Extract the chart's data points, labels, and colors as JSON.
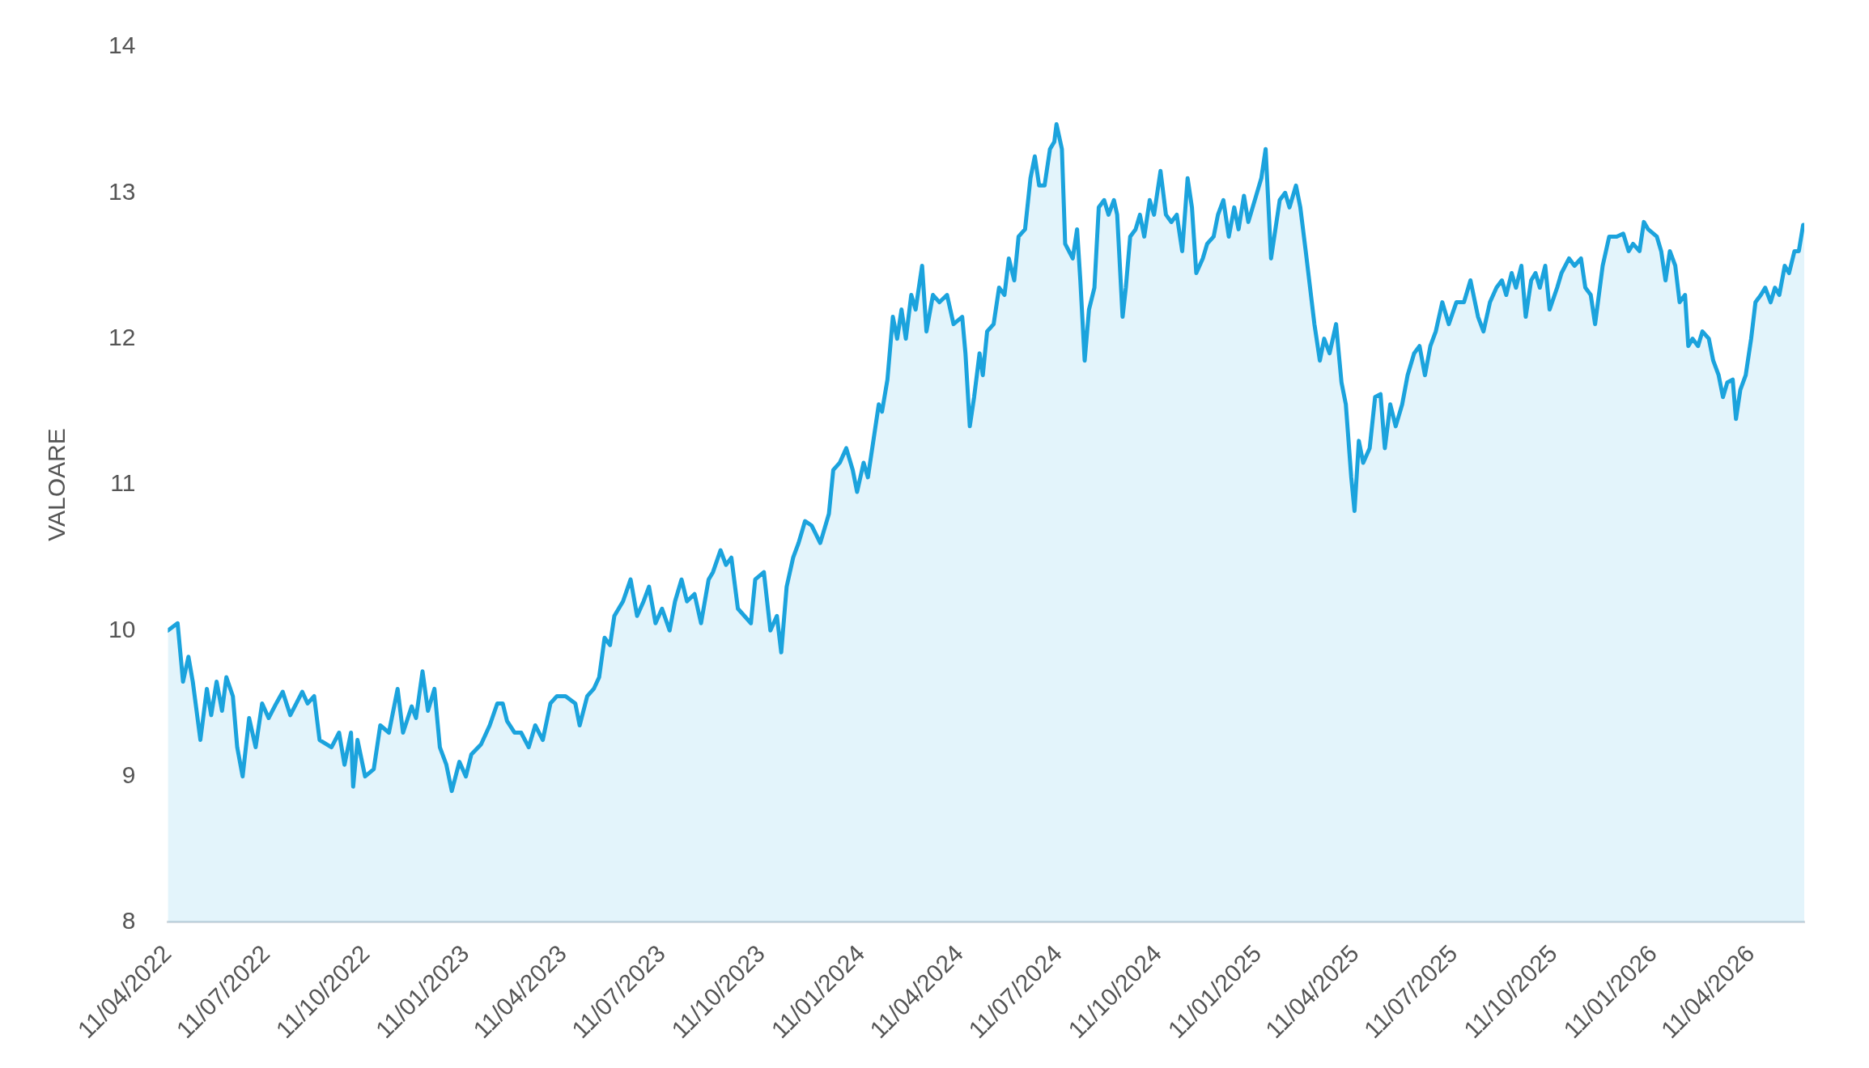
{
  "chart_data": {
    "type": "area",
    "ylabel": "VALOARE",
    "xlim": [
      "2022-04-11",
      "2026-05-30"
    ],
    "xticks": [
      {
        "value": "2022-04-11",
        "label": "11/04/2022"
      },
      {
        "value": "2022-07-11",
        "label": "11/07/2022"
      },
      {
        "value": "2022-10-11",
        "label": "11/10/2022"
      },
      {
        "value": "2023-01-11",
        "label": "11/01/2023"
      },
      {
        "value": "2023-04-11",
        "label": "11/04/2023"
      },
      {
        "value": "2023-07-11",
        "label": "11/07/2023"
      },
      {
        "value": "2023-10-11",
        "label": "11/10/2023"
      },
      {
        "value": "2024-01-11",
        "label": "11/01/2024"
      },
      {
        "value": "2024-04-11",
        "label": "11/04/2024"
      },
      {
        "value": "2024-07-11",
        "label": "11/07/2024"
      },
      {
        "value": "2024-10-11",
        "label": "11/10/2024"
      },
      {
        "value": "2025-01-11",
        "label": "11/01/2025"
      },
      {
        "value": "2025-04-11",
        "label": "11/04/2025"
      },
      {
        "value": "2025-07-11",
        "label": "11/07/2025"
      },
      {
        "value": "2025-10-11",
        "label": "11/10/2025"
      },
      {
        "value": "2026-01-11",
        "label": "11/01/2026"
      },
      {
        "value": "2026-04-11",
        "label": "11/04/2026"
      }
    ],
    "ylim": [
      8,
      14
    ],
    "yticks": [
      8,
      9,
      10,
      11,
      12,
      13,
      14
    ],
    "x": [
      "2022-04-11",
      "2022-04-20",
      "2022-04-25",
      "2022-04-30",
      "2022-05-04",
      "2022-05-11",
      "2022-05-17",
      "2022-05-21",
      "2022-05-26",
      "2022-05-31",
      "2022-06-04",
      "2022-06-10",
      "2022-06-14",
      "2022-06-19",
      "2022-06-25",
      "2022-07-01",
      "2022-07-07",
      "2022-07-13",
      "2022-07-20",
      "2022-07-26",
      "2022-08-02",
      "2022-08-13",
      "2022-08-18",
      "2022-08-24",
      "2022-08-29",
      "2022-09-09",
      "2022-09-16",
      "2022-09-21",
      "2022-09-27",
      "2022-09-29",
      "2022-10-03",
      "2022-10-10",
      "2022-10-18",
      "2022-10-24",
      "2022-11-01",
      "2022-11-09",
      "2022-11-14",
      "2022-11-22",
      "2022-11-26",
      "2022-12-02",
      "2022-12-07",
      "2022-12-13",
      "2022-12-18",
      "2022-12-24",
      "2022-12-29",
      "2023-01-05",
      "2023-01-11",
      "2023-01-16",
      "2023-01-25",
      "2023-02-02",
      "2023-02-09",
      "2023-02-14",
      "2023-02-18",
      "2023-02-25",
      "2023-03-03",
      "2023-03-10",
      "2023-03-16",
      "2023-03-23",
      "2023-03-30",
      "2023-04-05",
      "2023-04-13",
      "2023-04-22",
      "2023-04-26",
      "2023-05-03",
      "2023-05-09",
      "2023-05-14",
      "2023-05-19",
      "2023-05-24",
      "2023-05-28",
      "2023-06-05",
      "2023-06-12",
      "2023-06-18",
      "2023-06-24",
      "2023-06-29",
      "2023-07-05",
      "2023-07-11",
      "2023-07-18",
      "2023-07-23",
      "2023-07-29",
      "2023-08-03",
      "2023-08-10",
      "2023-08-16",
      "2023-08-23",
      "2023-08-27",
      "2023-09-03",
      "2023-09-08",
      "2023-09-13",
      "2023-09-19",
      "2023-09-25",
      "2023-10-01",
      "2023-10-05",
      "2023-10-13",
      "2023-10-19",
      "2023-10-25",
      "2023-10-29",
      "2023-11-03",
      "2023-11-09",
      "2023-11-14",
      "2023-11-20",
      "2023-11-26",
      "2023-12-04",
      "2023-12-12",
      "2023-12-16",
      "2023-12-22",
      "2023-12-28",
      "2024-01-03",
      "2024-01-07",
      "2024-01-13",
      "2024-01-17",
      "2024-01-22",
      "2024-01-27",
      "2024-01-30",
      "2024-02-04",
      "2024-02-09",
      "2024-02-13",
      "2024-02-17",
      "2024-02-21",
      "2024-02-26",
      "2024-03-01",
      "2024-03-07",
      "2024-03-11",
      "2024-03-17",
      "2024-03-23",
      "2024-03-30",
      "2024-04-05",
      "2024-04-13",
      "2024-04-16",
      "2024-04-20",
      "2024-04-24",
      "2024-04-29",
      "2024-05-02",
      "2024-05-06",
      "2024-05-12",
      "2024-05-17",
      "2024-05-22",
      "2024-05-26",
      "2024-05-31",
      "2024-06-04",
      "2024-06-10",
      "2024-06-15",
      "2024-06-19",
      "2024-06-23",
      "2024-06-28",
      "2024-07-03",
      "2024-07-07",
      "2024-07-09",
      "2024-07-14",
      "2024-07-17",
      "2024-07-24",
      "2024-07-28",
      "2024-07-31",
      "2024-08-04",
      "2024-08-08",
      "2024-08-13",
      "2024-08-17",
      "2024-08-22",
      "2024-08-26",
      "2024-08-31",
      "2024-09-03",
      "2024-09-08",
      "2024-09-11",
      "2024-09-15",
      "2024-09-20",
      "2024-09-24",
      "2024-09-28",
      "2024-10-03",
      "2024-10-07",
      "2024-10-13",
      "2024-10-18",
      "2024-10-23",
      "2024-10-28",
      "2024-11-02",
      "2024-11-07",
      "2024-11-11",
      "2024-11-15",
      "2024-11-21",
      "2024-11-25",
      "2024-12-01",
      "2024-12-05",
      "2024-12-10",
      "2024-12-15",
      "2024-12-20",
      "2024-12-24",
      "2024-12-29",
      "2025-01-02",
      "2025-01-08",
      "2025-01-14",
      "2025-01-18",
      "2025-01-23",
      "2025-01-27",
      "2025-01-31",
      "2025-02-05",
      "2025-02-09",
      "2025-02-15",
      "2025-02-19",
      "2025-02-24",
      "2025-02-28",
      "2025-03-04",
      "2025-03-09",
      "2025-03-13",
      "2025-03-18",
      "2025-03-24",
      "2025-03-29",
      "2025-04-02",
      "2025-04-07",
      "2025-04-10",
      "2025-04-14",
      "2025-04-18",
      "2025-04-24",
      "2025-04-29",
      "2025-05-04",
      "2025-05-08",
      "2025-05-13",
      "2025-05-18",
      "2025-05-24",
      "2025-05-29",
      "2025-06-04",
      "2025-06-09",
      "2025-06-14",
      "2025-06-19",
      "2025-06-24",
      "2025-06-30",
      "2025-07-06",
      "2025-07-13",
      "2025-07-20",
      "2025-07-26",
      "2025-08-02",
      "2025-08-07",
      "2025-08-13",
      "2025-08-19",
      "2025-08-24",
      "2025-08-28",
      "2025-09-02",
      "2025-09-06",
      "2025-09-11",
      "2025-09-15",
      "2025-09-20",
      "2025-09-24",
      "2025-09-28",
      "2025-10-03",
      "2025-10-07",
      "2025-10-14",
      "2025-10-18",
      "2025-10-25",
      "2025-10-30",
      "2025-11-05",
      "2025-11-09",
      "2025-11-14",
      "2025-11-18",
      "2025-11-25",
      "2025-12-01",
      "2025-12-08",
      "2025-12-14",
      "2025-12-19",
      "2025-12-23",
      "2025-12-29",
      "2026-01-02",
      "2026-01-06",
      "2026-01-14",
      "2026-01-18",
      "2026-01-22",
      "2026-01-26",
      "2026-01-31",
      "2026-02-04",
      "2026-02-09",
      "2026-02-12",
      "2026-02-16",
      "2026-02-21",
      "2026-02-25",
      "2026-03-03",
      "2026-03-07",
      "2026-03-12",
      "2026-03-16",
      "2026-03-20",
      "2026-03-25",
      "2026-03-28",
      "2026-04-01",
      "2026-04-06",
      "2026-04-11",
      "2026-04-15",
      "2026-04-20",
      "2026-04-24",
      "2026-04-29",
      "2026-05-03",
      "2026-05-07",
      "2026-05-12",
      "2026-05-16",
      "2026-05-21",
      "2026-05-25",
      "2026-05-29",
      "2026-05-30"
    ],
    "series": [
      {
        "color": "#1ba3dd",
        "values": [
          10.0,
          10.05,
          9.65,
          9.82,
          9.65,
          9.25,
          9.6,
          9.42,
          9.65,
          9.45,
          9.68,
          9.55,
          9.2,
          9.0,
          9.4,
          9.2,
          9.5,
          9.4,
          9.5,
          9.58,
          9.42,
          9.58,
          9.5,
          9.55,
          9.25,
          9.2,
          9.3,
          9.08,
          9.3,
          8.93,
          9.25,
          9.0,
          9.05,
          9.35,
          9.3,
          9.6,
          9.3,
          9.48,
          9.4,
          9.72,
          9.45,
          9.6,
          9.2,
          9.08,
          8.9,
          9.1,
          9.0,
          9.15,
          9.22,
          9.35,
          9.5,
          9.5,
          9.38,
          9.3,
          9.3,
          9.2,
          9.35,
          9.25,
          9.5,
          9.55,
          9.55,
          9.5,
          9.35,
          9.55,
          9.6,
          9.68,
          9.95,
          9.9,
          10.1,
          10.2,
          10.35,
          10.1,
          10.2,
          10.3,
          10.05,
          10.15,
          10.0,
          10.2,
          10.35,
          10.2,
          10.25,
          10.05,
          10.35,
          10.4,
          10.55,
          10.45,
          10.5,
          10.15,
          10.1,
          10.05,
          10.35,
          10.4,
          10.0,
          10.1,
          9.85,
          10.3,
          10.5,
          10.6,
          10.75,
          10.72,
          10.6,
          10.8,
          11.1,
          11.15,
          11.25,
          11.1,
          10.95,
          11.15,
          11.05,
          11.3,
          11.55,
          11.5,
          11.72,
          12.15,
          12.0,
          12.2,
          12.0,
          12.3,
          12.2,
          12.5,
          12.05,
          12.3,
          12.25,
          12.3,
          12.1,
          12.15,
          11.9,
          11.4,
          11.6,
          11.9,
          11.75,
          12.05,
          12.1,
          12.35,
          12.3,
          12.55,
          12.4,
          12.7,
          12.75,
          13.1,
          13.25,
          13.05,
          13.05,
          13.3,
          13.35,
          13.47,
          13.3,
          12.65,
          12.55,
          12.75,
          12.4,
          11.85,
          12.2,
          12.35,
          12.9,
          12.95,
          12.85,
          12.95,
          12.85,
          12.15,
          12.35,
          12.7,
          12.75,
          12.85,
          12.7,
          12.95,
          12.85,
          13.15,
          12.85,
          12.8,
          12.85,
          12.6,
          13.1,
          12.9,
          12.45,
          12.55,
          12.65,
          12.7,
          12.85,
          12.95,
          12.7,
          12.9,
          12.75,
          12.98,
          12.8,
          12.95,
          13.1,
          13.3,
          12.55,
          12.75,
          12.95,
          13.0,
          12.9,
          13.05,
          12.9,
          12.6,
          12.35,
          12.1,
          11.85,
          12.0,
          11.9,
          12.1,
          11.7,
          11.55,
          11.05,
          10.82,
          11.3,
          11.15,
          11.25,
          11.6,
          11.62,
          11.25,
          11.55,
          11.4,
          11.55,
          11.75,
          11.9,
          11.95,
          11.75,
          11.95,
          12.05,
          12.25,
          12.1,
          12.25,
          12.25,
          12.4,
          12.15,
          12.05,
          12.25,
          12.35,
          12.4,
          12.3,
          12.45,
          12.35,
          12.5,
          12.15,
          12.4,
          12.45,
          12.35,
          12.5,
          12.2,
          12.35,
          12.45,
          12.55,
          12.5,
          12.55,
          12.35,
          12.3,
          12.1,
          12.5,
          12.7,
          12.7,
          12.72,
          12.6,
          12.65,
          12.6,
          12.8,
          12.75,
          12.7,
          12.6,
          12.4,
          12.6,
          12.5,
          12.25,
          12.3,
          11.95,
          12.0,
          11.95,
          12.05,
          12.0,
          11.85,
          11.75,
          11.6,
          11.7,
          11.72,
          11.45,
          11.65,
          11.75,
          12.0,
          12.25,
          12.3,
          12.35,
          12.25,
          12.35,
          12.3,
          12.5,
          12.45,
          12.6,
          12.6,
          12.78,
          12.78
        ]
      }
    ]
  }
}
